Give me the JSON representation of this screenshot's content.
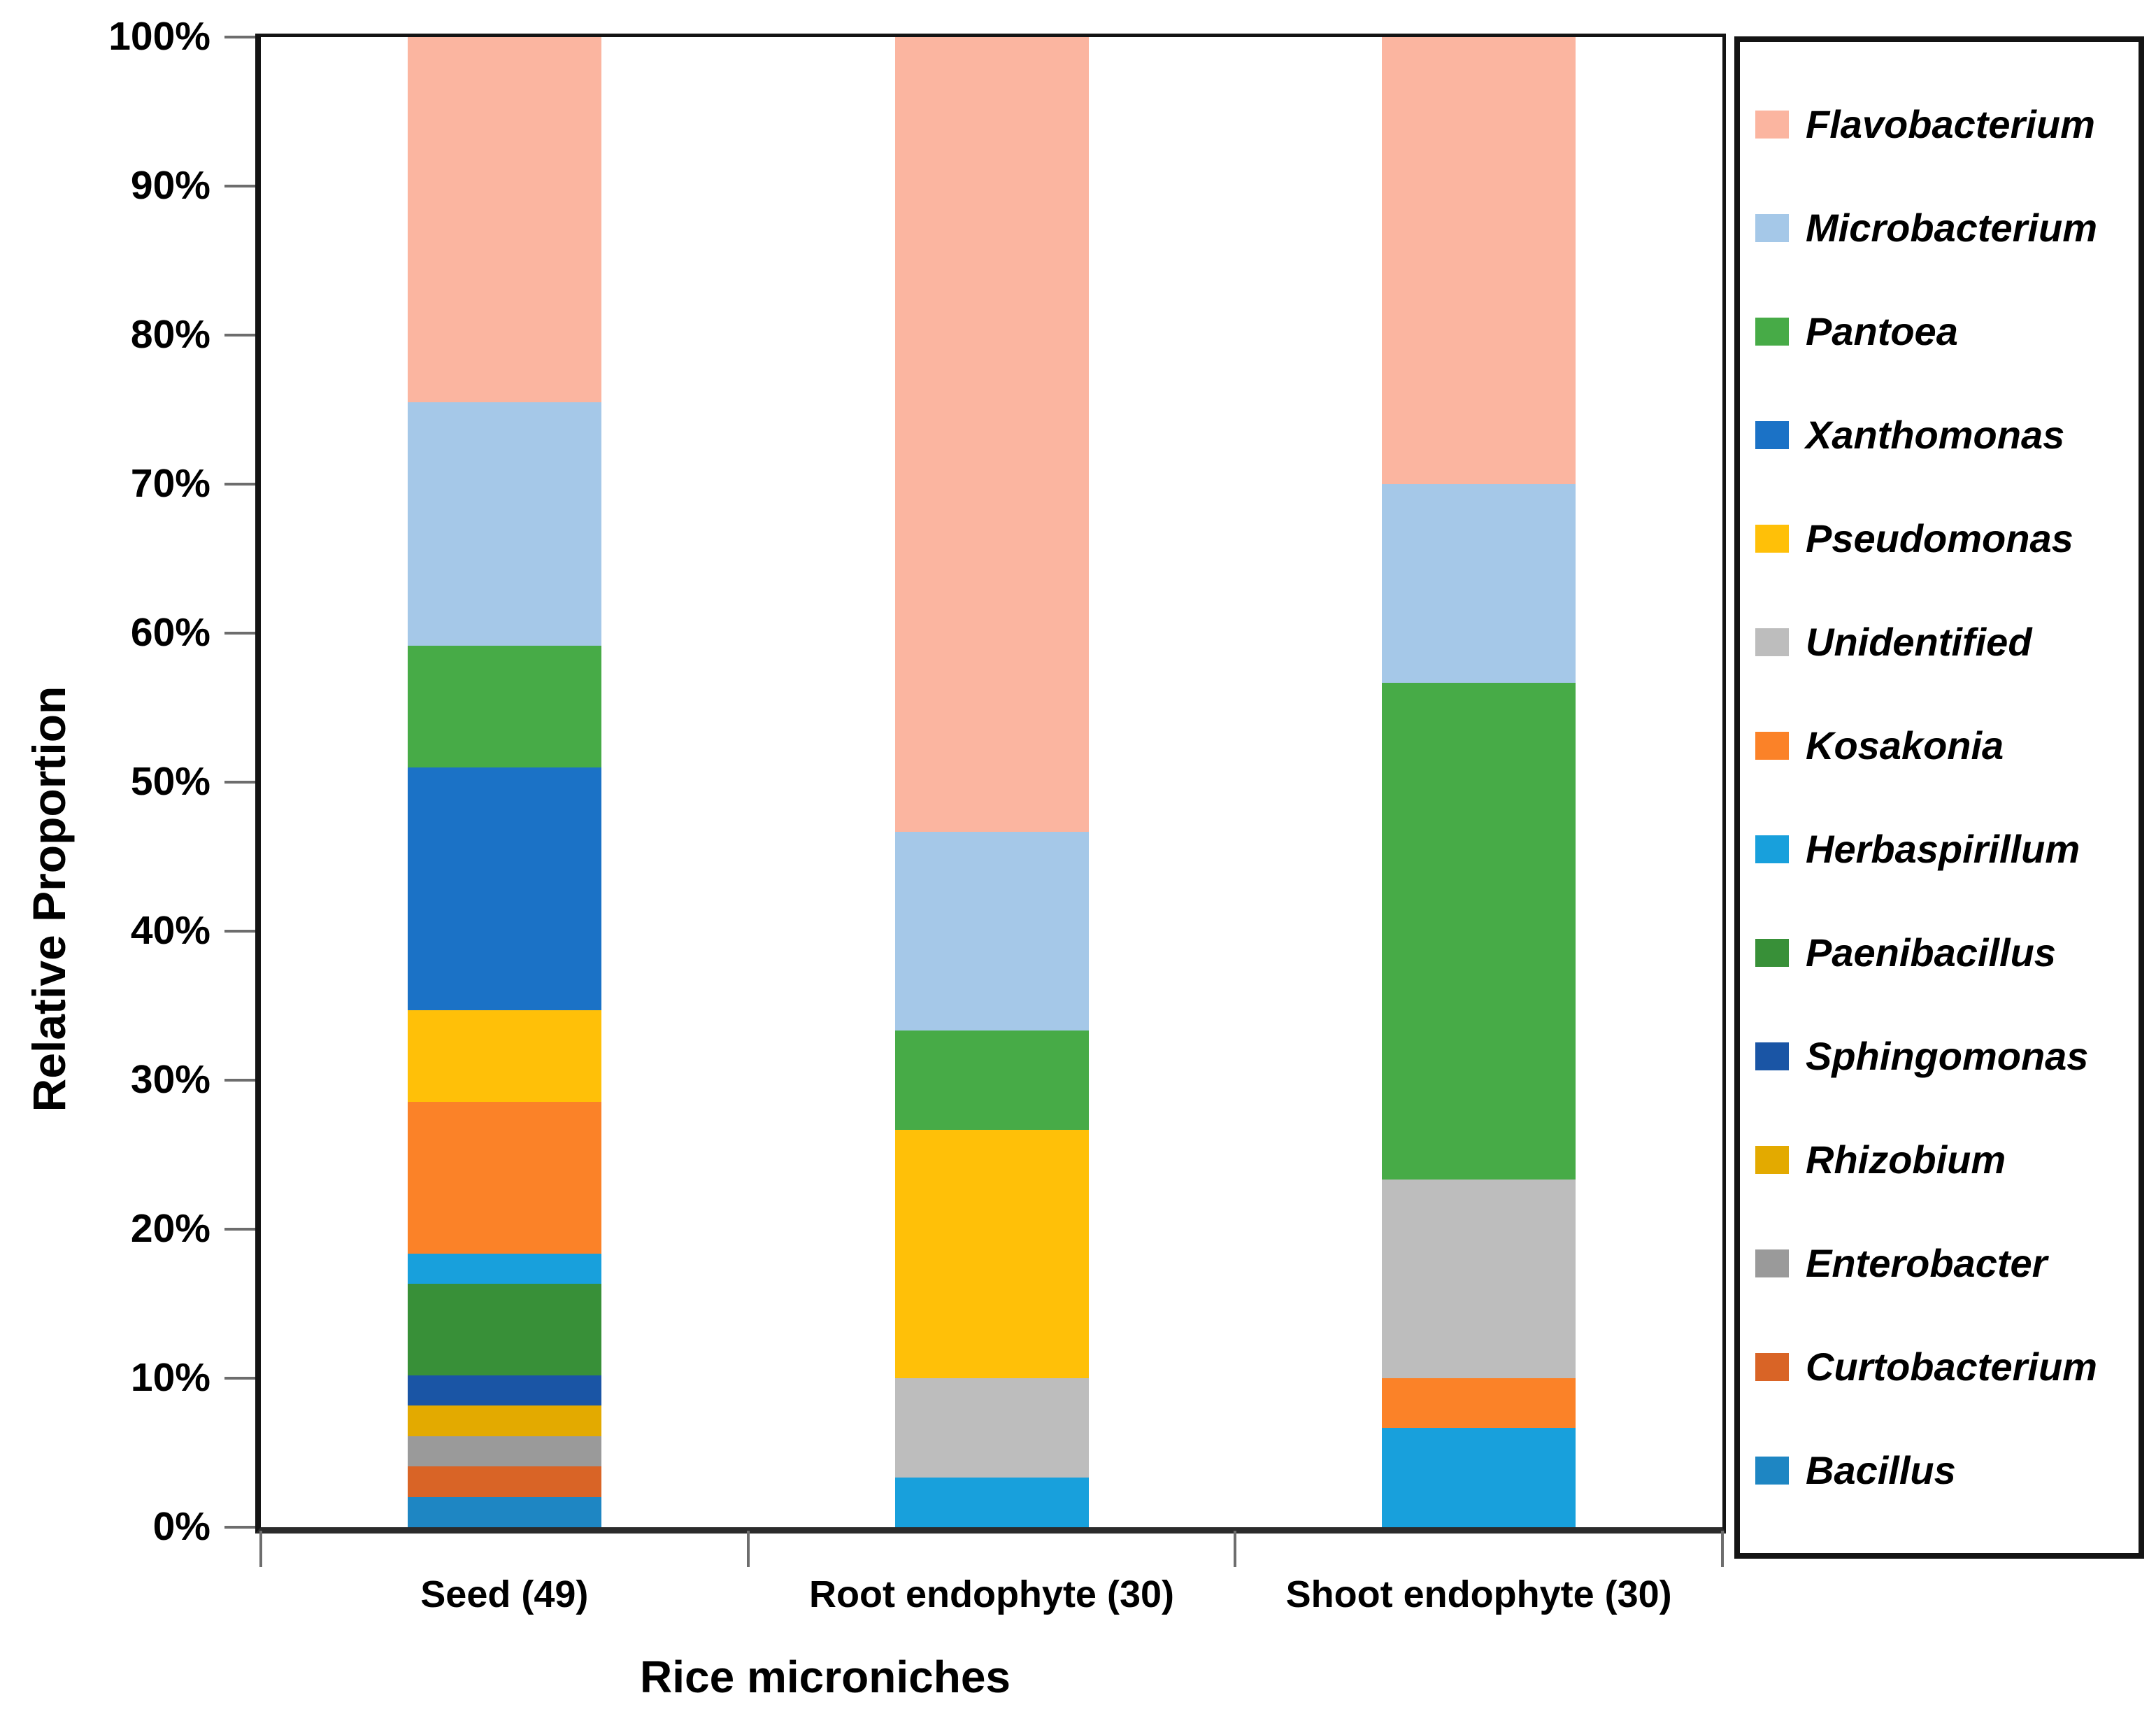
{
  "figure": {
    "ylabel": "Relative Proportion",
    "xlabel": "Rice microniches"
  },
  "chart_data": {
    "type": "bar",
    "subtype": "stacked-100-percent",
    "title": "",
    "xlabel": "Rice microniches",
    "ylabel": "Relative Proportion",
    "legend_position": "right",
    "grid": false,
    "y_axis": {
      "min": 0,
      "max": 100,
      "tick_step": 10,
      "unit": "%"
    },
    "ytick_labels": [
      "0%",
      "10%",
      "20%",
      "30%",
      "40%",
      "50%",
      "60%",
      "70%",
      "80%",
      "90%",
      "100%"
    ],
    "categories": [
      "Seed (49)",
      "Root endophyte (30)",
      "Shoot endophyte (30)"
    ],
    "series": [
      {
        "name": "Flavobacterium",
        "color": "#FBB5A0",
        "pattern": "solid",
        "values": [
          24.49,
          53.33,
          30.0
        ]
      },
      {
        "name": "Microbacterium",
        "color": "#A5C8E8",
        "pattern": "solid",
        "values": [
          16.33,
          13.33,
          13.33
        ]
      },
      {
        "name": "Pantoea",
        "color": "#47AB47",
        "pattern": "solid",
        "values": [
          8.16,
          6.67,
          33.33
        ]
      },
      {
        "name": "Xanthomonas",
        "color": "#1B72C6",
        "pattern": "solid",
        "values": [
          16.33,
          0,
          0
        ]
      },
      {
        "name": "Pseudomonas",
        "color": "#FFC008",
        "pattern": "solid",
        "values": [
          6.12,
          16.67,
          0
        ]
      },
      {
        "name": "Unidentified",
        "color": "#BDBDBD",
        "pattern": "dots",
        "values": [
          0,
          6.67,
          13.33
        ]
      },
      {
        "name": "Kosakonia",
        "color": "#FB8228",
        "pattern": "solid",
        "values": [
          10.2,
          0,
          3.33
        ]
      },
      {
        "name": "Herbaspirillum",
        "color": "#18A0DC",
        "pattern": "solid",
        "values": [
          2.04,
          3.33,
          6.67
        ]
      },
      {
        "name": "Paenibacillus",
        "color": "#389038",
        "pattern": "solid",
        "values": [
          6.12,
          0,
          0
        ]
      },
      {
        "name": "Sphingomonas",
        "color": "#1A55A5",
        "pattern": "solid",
        "values": [
          2.04,
          0,
          0
        ]
      },
      {
        "name": "Rhizobium",
        "color": "#E3AA00",
        "pattern": "solid",
        "values": [
          2.04,
          0,
          0
        ]
      },
      {
        "name": "Enterobacter",
        "color": "#9A9A9A",
        "pattern": "solid",
        "values": [
          2.04,
          0,
          0
        ]
      },
      {
        "name": "Curtobacterium",
        "color": "#D96426",
        "pattern": "solid",
        "values": [
          2.04,
          0,
          0
        ]
      },
      {
        "name": "Bacillus",
        "color": "#1E86C3",
        "pattern": "solid",
        "values": [
          2.04,
          0,
          0
        ]
      }
    ]
  },
  "layout_colors": {
    "axis": "#141414",
    "tick": "#6d6d6d",
    "background": "#ffffff"
  }
}
